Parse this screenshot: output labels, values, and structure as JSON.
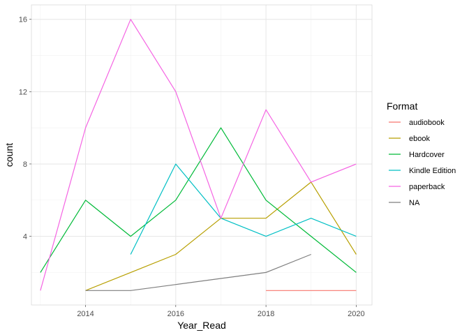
{
  "chart_data": {
    "type": "line",
    "xlabel": "Year_Read",
    "ylabel": "count",
    "xlim": [
      2012.8,
      2020.35
    ],
    "ylim": [
      0.2,
      16.8
    ],
    "x_ticks": [
      2014,
      2016,
      2018,
      2020
    ],
    "x_minor": [
      2013,
      2015,
      2017,
      2019
    ],
    "y_ticks": [
      4,
      8,
      12,
      16
    ],
    "y_minor": [
      2,
      6,
      10,
      14
    ],
    "grid": true,
    "legend": {
      "title": "Format",
      "position": "right"
    },
    "series": [
      {
        "name": "audiobook",
        "color": "#F8766D",
        "points": [
          [
            2018,
            1
          ],
          [
            2019,
            1
          ],
          [
            2020,
            1
          ]
        ]
      },
      {
        "name": "ebook",
        "color": "#B79F00",
        "points": [
          [
            2014,
            1
          ],
          [
            2015,
            2
          ],
          [
            2016,
            3
          ],
          [
            2017,
            5
          ],
          [
            2018,
            5
          ],
          [
            2019,
            7
          ],
          [
            2020,
            3
          ]
        ]
      },
      {
        "name": "Hardcover",
        "color": "#00BA38",
        "points": [
          [
            2013,
            2
          ],
          [
            2014,
            6
          ],
          [
            2015,
            4
          ],
          [
            2016,
            6
          ],
          [
            2017,
            10
          ],
          [
            2018,
            6
          ],
          [
            2019,
            4
          ],
          [
            2020,
            2
          ]
        ]
      },
      {
        "name": "Kindle Edition",
        "color": "#00BFC4",
        "points": [
          [
            2015,
            3
          ],
          [
            2016,
            8
          ],
          [
            2017,
            5
          ],
          [
            2018,
            4
          ],
          [
            2019,
            5
          ],
          [
            2020,
            4
          ]
        ]
      },
      {
        "name": "paperback",
        "color": "#F564E3",
        "points": [
          [
            2013,
            1
          ],
          [
            2014,
            10
          ],
          [
            2015,
            16
          ],
          [
            2016,
            12
          ],
          [
            2017,
            5
          ],
          [
            2018,
            11
          ],
          [
            2019,
            7
          ],
          [
            2020,
            8
          ]
        ]
      },
      {
        "name": "NA",
        "color": "#7F7F7F",
        "points": [
          [
            2014,
            1
          ],
          [
            2015,
            1
          ],
          [
            2016,
            1.333
          ],
          [
            2017,
            1.667
          ],
          [
            2018,
            2
          ],
          [
            2019,
            3
          ]
        ]
      }
    ]
  }
}
